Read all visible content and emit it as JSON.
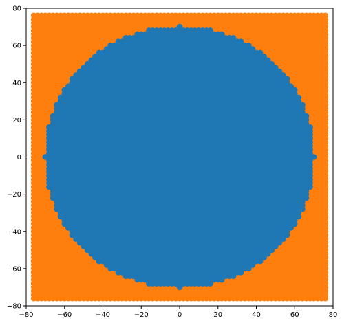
{
  "chart_data": {
    "type": "scatter",
    "title": "",
    "xlabel": "",
    "ylabel": "",
    "xlim": [
      -80,
      80
    ],
    "ylim": [
      -80,
      80
    ],
    "xticks": [
      -80,
      -60,
      -40,
      -20,
      0,
      20,
      40,
      60,
      80
    ],
    "yticks": [
      -80,
      -60,
      -40,
      -20,
      0,
      20,
      40,
      60,
      80
    ],
    "grid": false,
    "legend": "none",
    "grid_sampling": {
      "x_range": [
        -76,
        76
      ],
      "y_range": [
        -76,
        76
      ],
      "spacing": 2
    },
    "series": [
      {
        "color": "#ff7f0e",
        "rule": "points of the grid with sqrt(x^2 + y^2) > 70"
      },
      {
        "color": "#1f77b4",
        "rule": "points of the grid with sqrt(x^2 + y^2) <= 70"
      }
    ],
    "circle_radius": 70
  }
}
